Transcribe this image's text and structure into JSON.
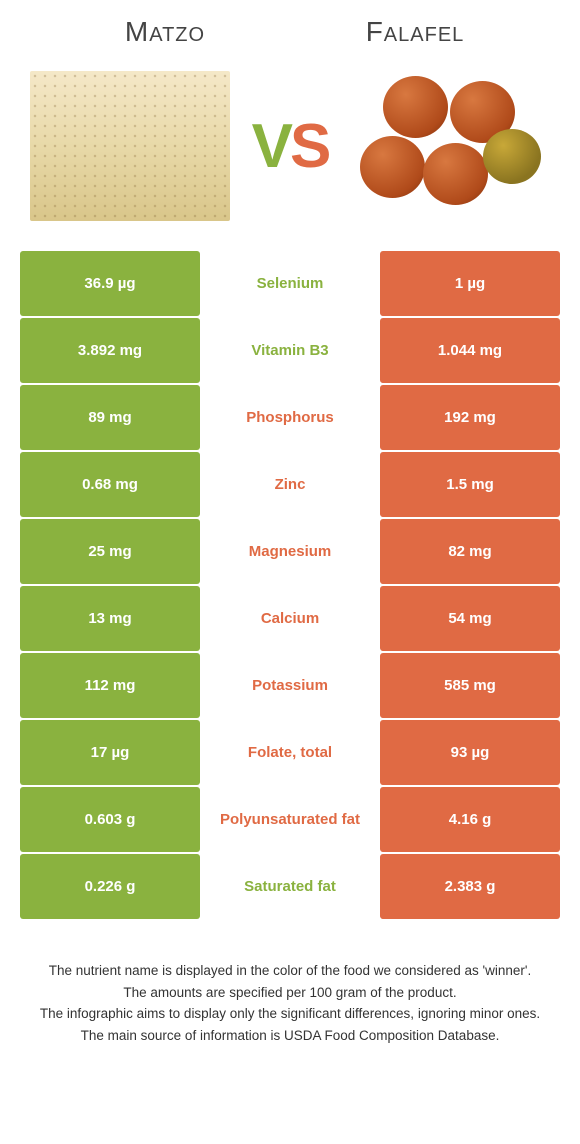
{
  "colors": {
    "left_bg": "#8ab23f",
    "right_bg": "#e06a44",
    "left_text": "#8ab23f",
    "right_text": "#e06a44"
  },
  "header": {
    "left_title": "Matzo",
    "right_title": "Falafel",
    "vs_v": "V",
    "vs_s": "S"
  },
  "rows": [
    {
      "label": "Selenium",
      "left": "36.9 µg",
      "right": "1 µg",
      "winner": "left"
    },
    {
      "label": "Vitamin B3",
      "left": "3.892 mg",
      "right": "1.044 mg",
      "winner": "left"
    },
    {
      "label": "Phosphorus",
      "left": "89 mg",
      "right": "192 mg",
      "winner": "right"
    },
    {
      "label": "Zinc",
      "left": "0.68 mg",
      "right": "1.5 mg",
      "winner": "right"
    },
    {
      "label": "Magnesium",
      "left": "25 mg",
      "right": "82 mg",
      "winner": "right"
    },
    {
      "label": "Calcium",
      "left": "13 mg",
      "right": "54 mg",
      "winner": "right"
    },
    {
      "label": "Potassium",
      "left": "112 mg",
      "right": "585 mg",
      "winner": "right"
    },
    {
      "label": "Folate, total",
      "left": "17 µg",
      "right": "93 µg",
      "winner": "right"
    },
    {
      "label": "Polyunsaturated fat",
      "left": "0.603 g",
      "right": "4.16 g",
      "winner": "right"
    },
    {
      "label": "Saturated fat",
      "left": "0.226 g",
      "right": "2.383 g",
      "winner": "left"
    }
  ],
  "footnotes": [
    "The nutrient name is displayed in the color of the food we considered as 'winner'.",
    "The amounts are specified per 100 gram of the product.",
    "The infographic aims to display only the significant differences, ignoring minor ones.",
    "The main source of information is USDA Food Composition Database."
  ]
}
